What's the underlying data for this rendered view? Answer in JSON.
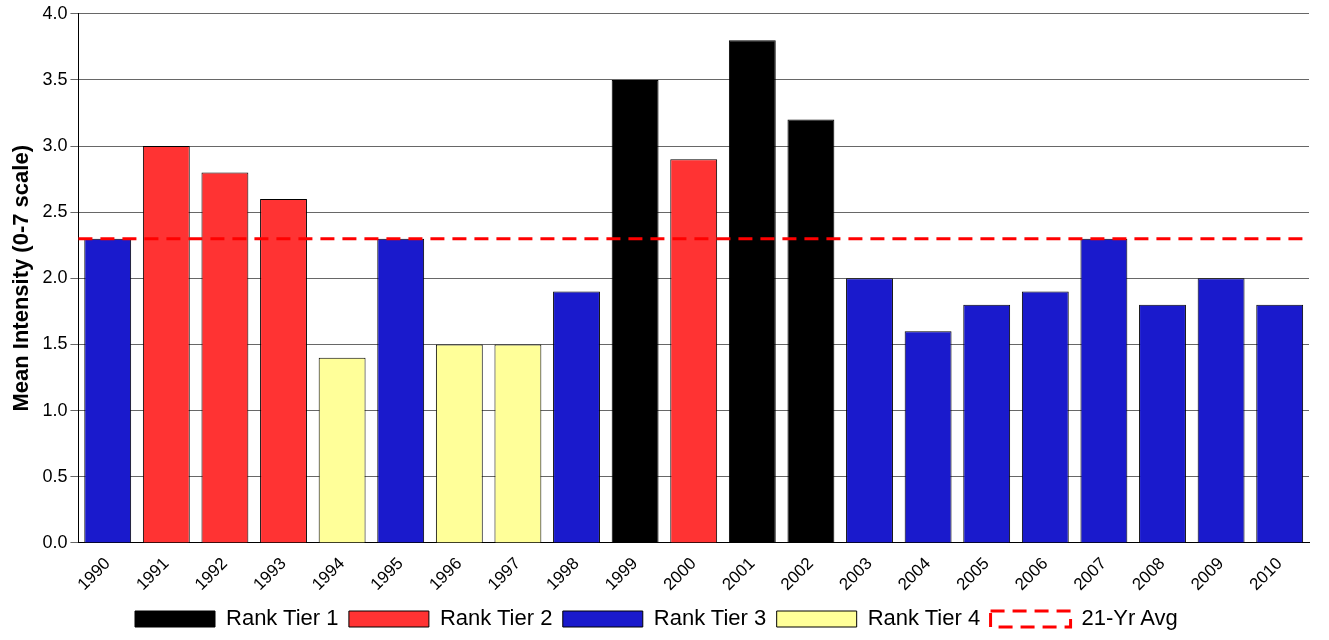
{
  "chart_data": {
    "type": "bar",
    "ylabel": "Mean Intensity (0-7 scale)",
    "categories": [
      "1990",
      "1991",
      "1992",
      "1993",
      "1994",
      "1995",
      "1996",
      "1997",
      "1998",
      "1999",
      "2000",
      "2001",
      "2002",
      "2003",
      "2004",
      "2005",
      "2006",
      "2007",
      "2008",
      "2009",
      "2010"
    ],
    "series": [
      {
        "name": "Rank Tier 1",
        "color": "#000000",
        "values": [
          null,
          null,
          null,
          null,
          null,
          null,
          null,
          null,
          null,
          3.5,
          null,
          3.8,
          3.2,
          null,
          null,
          null,
          null,
          null,
          null,
          null,
          null
        ]
      },
      {
        "name": "Rank Tier 2",
        "color": "#ff3333",
        "values": [
          null,
          3.0,
          2.8,
          2.6,
          null,
          null,
          null,
          null,
          null,
          null,
          2.9,
          null,
          null,
          null,
          null,
          null,
          null,
          null,
          null,
          null,
          null
        ]
      },
      {
        "name": "Rank Tier 3",
        "color": "#1a1acc",
        "values": [
          2.3,
          null,
          null,
          null,
          null,
          2.3,
          null,
          null,
          1.9,
          null,
          null,
          null,
          null,
          2.0,
          1.6,
          1.8,
          1.9,
          2.3,
          1.8,
          2.0,
          1.8
        ]
      },
      {
        "name": "Rank Tier 4",
        "color": "#ffff99",
        "values": [
          null,
          null,
          null,
          null,
          1.4,
          null,
          1.5,
          1.5,
          null,
          null,
          null,
          null,
          null,
          null,
          null,
          null,
          null,
          null,
          null,
          null,
          null
        ]
      }
    ],
    "ylim": [
      0,
      4
    ],
    "yticks": [
      {
        "value": 0,
        "label": "0.0"
      },
      {
        "value": 0.5,
        "label": "0.5"
      },
      {
        "value": 1,
        "label": "1.0"
      },
      {
        "value": 1.5,
        "label": "1.5"
      },
      {
        "value": 2,
        "label": "2.0"
      },
      {
        "value": 2.5,
        "label": "2.5"
      },
      {
        "value": 3,
        "label": "3.0"
      },
      {
        "value": 3.5,
        "label": "3.5"
      },
      {
        "value": 4,
        "label": "4.0"
      }
    ],
    "ref_lines": [
      {
        "axis": "y",
        "value": 2.3,
        "label": "21-Yr Avg",
        "color": "#ff0000",
        "line_style": "dashed"
      }
    ],
    "grid": "y",
    "legend": "bottom"
  }
}
